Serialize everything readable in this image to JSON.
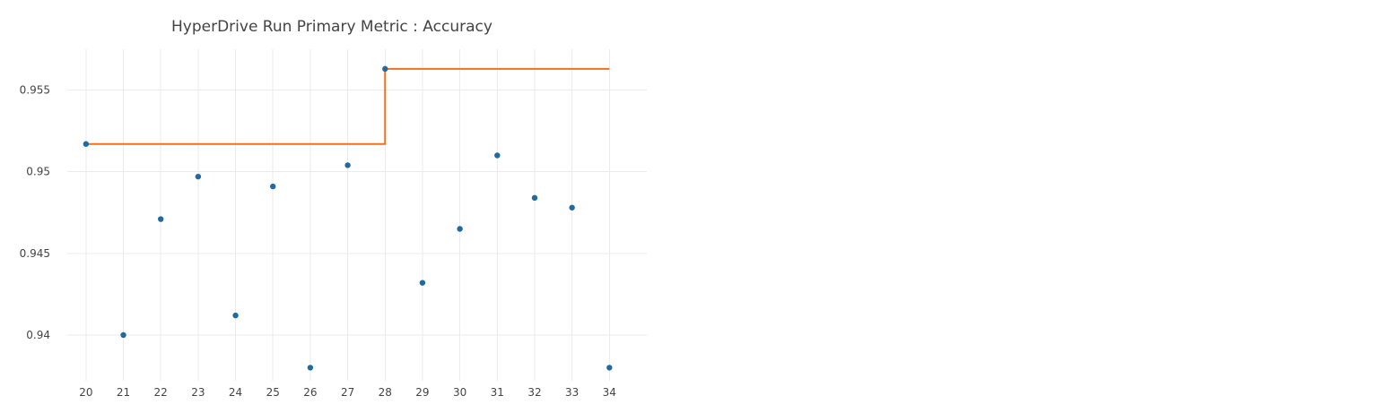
{
  "chart_data": {
    "type": "scatter",
    "title": "HyperDrive Run Primary Metric : Accuracy",
    "xlabel": "",
    "ylabel": "",
    "xlim": [
      19.5,
      35
    ],
    "ylim": [
      0.9372,
      0.9575
    ],
    "x_ticks": [
      20,
      21,
      22,
      23,
      24,
      25,
      26,
      27,
      28,
      29,
      30,
      31,
      32,
      33,
      34
    ],
    "y_ticks": [
      0.94,
      0.945,
      0.95,
      0.955
    ],
    "y_tick_labels": [
      "0.94",
      "0.945",
      "0.95",
      "0.955"
    ],
    "grid": true,
    "legend": "none",
    "series": [
      {
        "type": "scatter",
        "color": "#1f6a9e",
        "x": [
          20,
          21,
          22,
          23,
          24,
          25,
          26,
          27,
          28,
          29,
          30,
          31,
          32,
          33,
          34
        ],
        "y": [
          0.9517,
          0.94,
          0.9471,
          0.9497,
          0.9412,
          0.9491,
          0.938,
          0.9504,
          0.9563,
          0.9432,
          0.9465,
          0.951,
          0.9484,
          0.9478,
          0.938
        ]
      },
      {
        "type": "step",
        "color": "#f0701e",
        "x": [
          20,
          21,
          22,
          23,
          24,
          25,
          26,
          27,
          28,
          29,
          30,
          31,
          32,
          33,
          34
        ],
        "y": [
          0.9517,
          0.9517,
          0.9517,
          0.9517,
          0.9517,
          0.9517,
          0.9517,
          0.9517,
          0.9563,
          0.9563,
          0.9563,
          0.9563,
          0.9563,
          0.9563,
          0.9563
        ]
      }
    ]
  }
}
